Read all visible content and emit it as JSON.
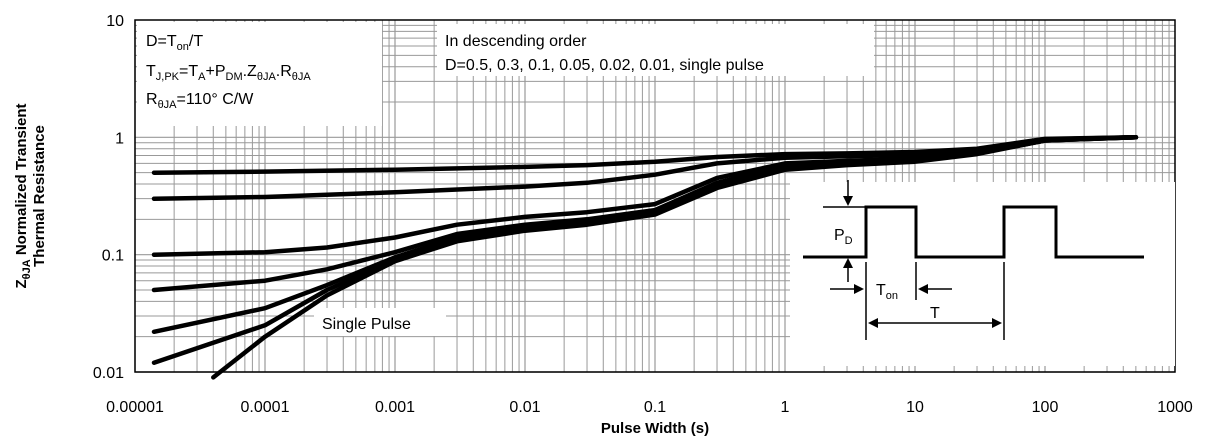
{
  "chart_data": {
    "type": "line",
    "xscale": "log",
    "yscale": "log",
    "xlim": [
      1e-05,
      1000
    ],
    "ylim": [
      0.01,
      10
    ],
    "grid": true,
    "xlabel": "Pulse Width (s)",
    "ylabel_main": "Normalized Transient",
    "ylabel_sub": "θJA",
    "ylabel_line2": "Thermal Resistance",
    "x_ticks": [
      "0.00001",
      "0.0001",
      "0.001",
      "0.01",
      "0.1",
      "1",
      "10",
      "100",
      "1000"
    ],
    "y_ticks": [
      "0.01",
      "0.1",
      "1",
      "10"
    ],
    "series": [
      {
        "x": [
          1.4e-05,
          0.0001,
          0.001,
          0.01,
          0.03,
          0.1,
          0.3,
          1,
          3,
          10,
          30,
          100,
          500
        ],
        "y": [
          0.5,
          0.51,
          0.53,
          0.56,
          0.58,
          0.62,
          0.68,
          0.72,
          0.73,
          0.75,
          0.8,
          0.97,
          1.0
        ]
      },
      {
        "x": [
          1.4e-05,
          0.0001,
          0.001,
          0.01,
          0.03,
          0.1,
          0.3,
          1,
          3,
          10,
          30,
          100,
          500
        ],
        "y": [
          0.3,
          0.31,
          0.34,
          0.38,
          0.41,
          0.48,
          0.6,
          0.67,
          0.69,
          0.71,
          0.78,
          0.96,
          1.0
        ]
      },
      {
        "x": [
          1.4e-05,
          0.0001,
          0.0003,
          0.001,
          0.003,
          0.01,
          0.03,
          0.1,
          0.3,
          1,
          3,
          10,
          30,
          100,
          500
        ],
        "y": [
          0.1,
          0.105,
          0.115,
          0.14,
          0.18,
          0.21,
          0.23,
          0.27,
          0.45,
          0.6,
          0.63,
          0.66,
          0.75,
          0.95,
          1.0
        ]
      },
      {
        "x": [
          1.4e-05,
          0.0001,
          0.0003,
          0.001,
          0.003,
          0.01,
          0.03,
          0.1,
          0.3,
          1,
          3,
          10,
          30,
          100,
          500
        ],
        "y": [
          0.05,
          0.06,
          0.075,
          0.105,
          0.15,
          0.18,
          0.2,
          0.24,
          0.41,
          0.57,
          0.61,
          0.65,
          0.74,
          0.95,
          1.0
        ]
      },
      {
        "x": [
          1.4e-05,
          0.0001,
          0.0003,
          0.001,
          0.003,
          0.01,
          0.03,
          0.1,
          0.3,
          1,
          3,
          10,
          30,
          100,
          500
        ],
        "y": [
          0.022,
          0.035,
          0.055,
          0.095,
          0.14,
          0.17,
          0.19,
          0.23,
          0.39,
          0.55,
          0.6,
          0.64,
          0.73,
          0.94,
          1.0
        ]
      },
      {
        "x": [
          1.4e-05,
          0.0001,
          0.0003,
          0.001,
          0.003,
          0.01,
          0.03,
          0.1,
          0.3,
          1,
          3,
          10,
          30,
          100,
          500
        ],
        "y": [
          0.012,
          0.025,
          0.05,
          0.09,
          0.135,
          0.165,
          0.185,
          0.225,
          0.38,
          0.54,
          0.59,
          0.63,
          0.73,
          0.94,
          1.0
        ]
      },
      {
        "name": "Single Pulse",
        "x": [
          4e-05,
          0.0001,
          0.0003,
          0.001,
          0.003,
          0.01,
          0.03,
          0.1,
          0.3,
          1,
          3,
          10,
          30,
          100,
          500
        ],
        "y": [
          0.009,
          0.02,
          0.045,
          0.088,
          0.13,
          0.16,
          0.18,
          0.22,
          0.37,
          0.53,
          0.58,
          0.62,
          0.72,
          0.94,
          1.0
        ]
      }
    ],
    "annotations": {
      "box1": {
        "line1": {
          "a": "D=T",
          "a_sub": "on",
          "b": "/T"
        },
        "line2": {
          "a": "T",
          "a_sub": "J,PK",
          "b": "=T",
          "b_sub": "A",
          "c": "+P",
          "c_sub": "DM",
          "d": ".Z",
          "d_sub": "θJA",
          "e": ".R",
          "e_sub": "θJA"
        },
        "line3": {
          "a": "R",
          "a_sub": "θJA",
          "b": "=110°  C/W"
        }
      },
      "box2": {
        "line1": "In descending order",
        "line2": "D=0.5, 0.3, 0.1, 0.05, 0.02, 0.01, single pulse"
      },
      "single_pulse_label": "Single Pulse",
      "inset": {
        "pd": "P",
        "pd_sub": "D",
        "ton": "T",
        "ton_sub": "on",
        "t": "T"
      }
    }
  }
}
